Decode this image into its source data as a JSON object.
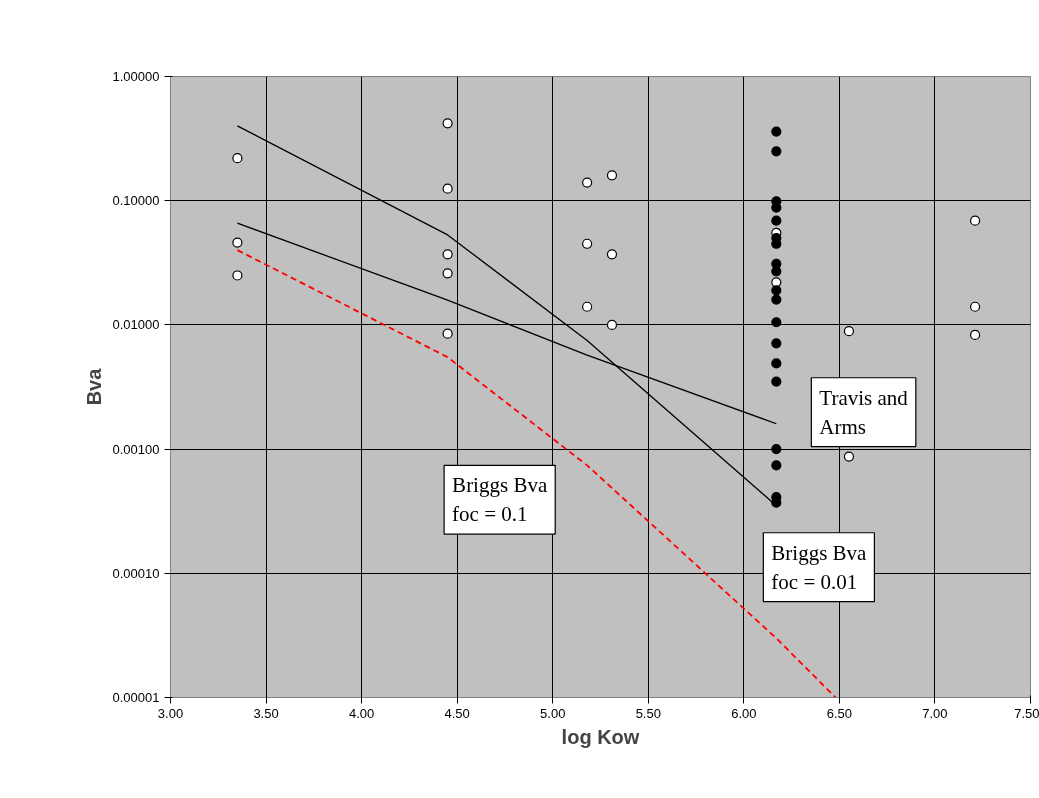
{
  "chart_data": {
    "type": "scatter",
    "xlabel": "log Kow",
    "ylabel": "Bva",
    "log": "y",
    "grid": true,
    "xlim": [
      3.0,
      7.5
    ],
    "ylim": [
      1e-05,
      1.0
    ],
    "xticks": [
      {
        "value": 3.0,
        "label": "3.00"
      },
      {
        "value": 3.5,
        "label": "3.50"
      },
      {
        "value": 4.0,
        "label": "4.00"
      },
      {
        "value": 4.5,
        "label": "4.50"
      },
      {
        "value": 5.0,
        "label": "5.00"
      },
      {
        "value": 5.5,
        "label": "5.50"
      },
      {
        "value": 6.0,
        "label": "6.00"
      },
      {
        "value": 6.5,
        "label": "6.50"
      },
      {
        "value": 7.0,
        "label": "7.00"
      },
      {
        "value": 7.5,
        "label": "7.50"
      }
    ],
    "yticks": [
      {
        "value": 1e-05,
        "label": "0.00001"
      },
      {
        "value": 0.0001,
        "label": "0.00010"
      },
      {
        "value": 0.001,
        "label": "0.00100"
      },
      {
        "value": 0.01,
        "label": "0.01000"
      },
      {
        "value": 0.1,
        "label": "0.10000"
      },
      {
        "value": 1.0,
        "label": "1.00000"
      }
    ],
    "series": [
      {
        "marker": "circle",
        "color": "#ffffff",
        "x": [
          3.35,
          3.35,
          3.35,
          4.45,
          4.45,
          4.45,
          4.45,
          4.45,
          5.18,
          5.18,
          5.18,
          5.31,
          5.31,
          5.31,
          6.55,
          6.55,
          7.21,
          7.21,
          7.21,
          6.17,
          6.17
        ],
        "values": [
          0.22,
          0.046,
          0.025,
          0.42,
          0.125,
          0.037,
          0.026,
          0.0085,
          0.14,
          0.045,
          0.014,
          0.16,
          0.037,
          0.01,
          0.0089,
          0.00087,
          0.069,
          0.014,
          0.0083,
          0.055,
          0.022
        ]
      },
      {
        "marker": "circle",
        "color": "#000000",
        "x": [
          6.17,
          6.17,
          6.17,
          6.17,
          6.17,
          6.17,
          6.17,
          6.17,
          6.17,
          6.17,
          6.17,
          6.17,
          6.17,
          6.17,
          6.17,
          6.17,
          6.17,
          6.17,
          6.17
        ],
        "values": [
          0.36,
          0.25,
          0.099,
          0.088,
          0.069,
          0.05,
          0.045,
          0.031,
          0.027,
          0.019,
          0.016,
          0.0105,
          0.0071,
          0.0049,
          0.0035,
          0.001,
          0.00074,
          0.00041,
          0.00037
        ]
      },
      {
        "type": "line",
        "name": "Briggs Bva\nfoc = 0.01",
        "marker": "none",
        "line_style": "solid",
        "color": "#000000",
        "x": [
          3.35,
          4.45,
          5.18,
          6.17
        ],
        "values": [
          0.4,
          0.053,
          0.0075,
          0.00035
        ]
      },
      {
        "type": "line",
        "name": "Travis and\nArms",
        "marker": "none",
        "line_style": "solid",
        "color": "#000000",
        "x": [
          3.35,
          4.45,
          5.18,
          6.17
        ],
        "values": [
          0.066,
          0.0158,
          0.0057,
          0.0016
        ]
      },
      {
        "type": "line",
        "name": "Briggs Bva\nfoc = 0.1",
        "marker": "none",
        "line_style": "dashed",
        "color": "#ff0000",
        "x": [
          3.35,
          4.45,
          5.18,
          6.17,
          6.48
        ],
        "values": [
          0.04,
          0.0055,
          0.00074,
          3e-05,
          1e-05
        ]
      }
    ]
  }
}
